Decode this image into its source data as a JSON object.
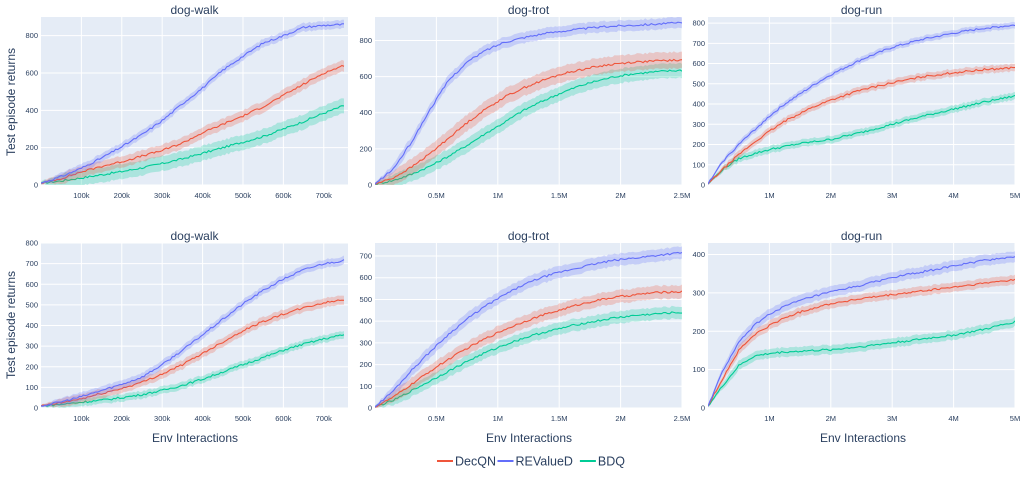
{
  "ylabel": "Test episode returns",
  "xlabel": "Env Interactions",
  "colors": {
    "DecQN": "#ef553b",
    "REValueD": "#636efa",
    "BDQ": "#00cc96",
    "plot_bg": "#e5ecf6",
    "grid": "#ffffff"
  },
  "legend": [
    {
      "name": "DecQN",
      "color": "#ef553b"
    },
    {
      "name": "REValueD",
      "color": "#636efa"
    },
    {
      "name": "BDQ",
      "color": "#00cc96"
    }
  ],
  "chart_data": [
    {
      "type": "line",
      "title": "dog-walk",
      "xlim": [
        0,
        760000
      ],
      "ylim": [
        0,
        900
      ],
      "xticks": [
        100000,
        200000,
        300000,
        400000,
        500000,
        600000,
        700000
      ],
      "xtick_labels": [
        "100k",
        "200k",
        "300k",
        "400k",
        "500k",
        "600k",
        "700k"
      ],
      "yticks": [
        0,
        200,
        400,
        600,
        800
      ],
      "ytick_labels": [
        "0",
        "200",
        "400",
        "600",
        "800"
      ],
      "series": [
        {
          "name": "DecQN",
          "x": [
            0,
            50000,
            100000,
            150000,
            200000,
            250000,
            300000,
            350000,
            400000,
            450000,
            500000,
            550000,
            600000,
            650000,
            700000,
            750000
          ],
          "y": [
            10,
            35,
            70,
            100,
            125,
            155,
            185,
            225,
            280,
            325,
            370,
            420,
            480,
            540,
            600,
            640
          ],
          "band": 30
        },
        {
          "name": "REValueD",
          "x": [
            0,
            50000,
            100000,
            150000,
            200000,
            250000,
            300000,
            350000,
            400000,
            450000,
            500000,
            550000,
            600000,
            650000,
            700000,
            750000
          ],
          "y": [
            10,
            45,
            90,
            145,
            205,
            270,
            345,
            435,
            520,
            615,
            690,
            760,
            800,
            845,
            855,
            860
          ],
          "band": 22
        },
        {
          "name": "BDQ",
          "x": [
            0,
            50000,
            100000,
            150000,
            200000,
            250000,
            300000,
            350000,
            400000,
            450000,
            500000,
            550000,
            600000,
            650000,
            700000,
            750000
          ],
          "y": [
            10,
            22,
            38,
            55,
            72,
            92,
            115,
            140,
            170,
            200,
            230,
            260,
            300,
            340,
            385,
            425
          ],
          "band": 40
        }
      ]
    },
    {
      "type": "line",
      "title": "dog-trot",
      "xlim": [
        0,
        2500000
      ],
      "ylim": [
        0,
        930
      ],
      "xticks": [
        500000,
        1000000,
        1500000,
        2000000,
        2500000
      ],
      "xtick_labels": [
        "0.5M",
        "1M",
        "1.5M",
        "2M",
        "2.5M"
      ],
      "yticks": [
        0,
        200,
        400,
        600,
        800
      ],
      "ytick_labels": [
        "0",
        "200",
        "400",
        "600",
        "800"
      ],
      "series": [
        {
          "name": "DecQN",
          "x": [
            0,
            150000,
            300000,
            450000,
            600000,
            750000,
            900000,
            1050000,
            1200000,
            1350000,
            1500000,
            1650000,
            1800000,
            1950000,
            2100000,
            2250000,
            2400000,
            2500000
          ],
          "y": [
            5,
            40,
            100,
            175,
            260,
            345,
            420,
            485,
            535,
            575,
            610,
            635,
            655,
            670,
            680,
            685,
            690,
            690
          ],
          "band": 45
        },
        {
          "name": "REValueD",
          "x": [
            0,
            150000,
            300000,
            450000,
            600000,
            750000,
            900000,
            1050000,
            1200000,
            1350000,
            1500000,
            1650000,
            1800000,
            1950000,
            2100000,
            2250000,
            2400000,
            2500000
          ],
          "y": [
            5,
            90,
            240,
            420,
            580,
            680,
            745,
            790,
            815,
            835,
            850,
            862,
            872,
            880,
            885,
            890,
            895,
            897
          ],
          "band": 30
        },
        {
          "name": "BDQ",
          "x": [
            0,
            150000,
            300000,
            450000,
            600000,
            750000,
            900000,
            1050000,
            1200000,
            1350000,
            1500000,
            1650000,
            1800000,
            1950000,
            2100000,
            2250000,
            2400000,
            2500000
          ],
          "y": [
            5,
            25,
            60,
            105,
            160,
            220,
            285,
            345,
            410,
            460,
            505,
            545,
            575,
            600,
            615,
            625,
            632,
            635
          ],
          "band": 40
        }
      ]
    },
    {
      "type": "line",
      "title": "dog-run",
      "xlim": [
        0,
        5000000
      ],
      "ylim": [
        0,
        830
      ],
      "xticks": [
        1000000,
        2000000,
        3000000,
        4000000,
        5000000
      ],
      "xtick_labels": [
        "1M",
        "2M",
        "3M",
        "4M",
        "5M"
      ],
      "yticks": [
        0,
        100,
        200,
        300,
        400,
        500,
        600,
        700,
        800
      ],
      "ytick_labels": [
        "0",
        "100",
        "200",
        "300",
        "400",
        "500",
        "600",
        "700",
        "800"
      ],
      "series": [
        {
          "name": "DecQN",
          "x": [
            0,
            250000,
            500000,
            750000,
            1000000,
            1250000,
            1500000,
            1750000,
            2000000,
            2500000,
            3000000,
            3500000,
            4000000,
            4500000,
            5000000
          ],
          "y": [
            5,
            80,
            150,
            210,
            265,
            315,
            355,
            390,
            420,
            470,
            505,
            535,
            555,
            570,
            580
          ],
          "band": 18
        },
        {
          "name": "REValueD",
          "x": [
            0,
            250000,
            500000,
            750000,
            1000000,
            1250000,
            1500000,
            1750000,
            2000000,
            2500000,
            3000000,
            3500000,
            4000000,
            4500000,
            5000000
          ],
          "y": [
            5,
            120,
            200,
            270,
            340,
            400,
            450,
            500,
            545,
            620,
            680,
            720,
            750,
            775,
            790
          ],
          "band": 16
        },
        {
          "name": "BDQ",
          "x": [
            0,
            250000,
            500000,
            750000,
            1000000,
            1250000,
            1500000,
            1750000,
            2000000,
            2500000,
            3000000,
            3500000,
            4000000,
            4500000,
            5000000
          ],
          "y": [
            5,
            80,
            130,
            155,
            175,
            190,
            205,
            215,
            225,
            260,
            300,
            340,
            375,
            410,
            440
          ],
          "band": 18
        }
      ]
    },
    {
      "type": "line",
      "title": "dog-walk",
      "xlim": [
        0,
        760000
      ],
      "ylim": [
        0,
        800
      ],
      "xticks": [
        100000,
        200000,
        300000,
        400000,
        500000,
        600000,
        700000
      ],
      "xtick_labels": [
        "100k",
        "200k",
        "300k",
        "400k",
        "500k",
        "600k",
        "700k"
      ],
      "yticks": [
        0,
        100,
        200,
        300,
        400,
        500,
        600,
        700,
        800
      ],
      "ytick_labels": [
        "0",
        "100",
        "200",
        "300",
        "400",
        "500",
        "600",
        "700",
        "800"
      ],
      "series": [
        {
          "name": "DecQN",
          "x": [
            0,
            50000,
            100000,
            150000,
            200000,
            250000,
            300000,
            350000,
            400000,
            450000,
            500000,
            550000,
            600000,
            650000,
            700000,
            750000
          ],
          "y": [
            10,
            25,
            45,
            70,
            95,
            125,
            165,
            210,
            265,
            320,
            375,
            420,
            455,
            485,
            510,
            525
          ],
          "band": 22
        },
        {
          "name": "REValueD",
          "x": [
            0,
            50000,
            100000,
            150000,
            200000,
            250000,
            300000,
            350000,
            400000,
            450000,
            500000,
            550000,
            600000,
            650000,
            700000,
            750000
          ],
          "y": [
            10,
            30,
            55,
            85,
            115,
            150,
            210,
            280,
            355,
            430,
            505,
            570,
            625,
            670,
            700,
            715
          ],
          "band": 20
        },
        {
          "name": "BDQ",
          "x": [
            0,
            50000,
            100000,
            150000,
            200000,
            250000,
            300000,
            350000,
            400000,
            450000,
            500000,
            550000,
            600000,
            650000,
            700000,
            750000
          ],
          "y": [
            10,
            18,
            28,
            38,
            50,
            65,
            85,
            110,
            140,
            175,
            210,
            245,
            280,
            310,
            335,
            355
          ],
          "band": 18
        }
      ]
    },
    {
      "type": "line",
      "title": "dog-trot",
      "xlim": [
        0,
        2500000
      ],
      "ylim": [
        0,
        760
      ],
      "xticks": [
        500000,
        1000000,
        1500000,
        2000000,
        2500000
      ],
      "xtick_labels": [
        "0.5M",
        "1M",
        "1.5M",
        "2M",
        "2.5M"
      ],
      "yticks": [
        0,
        100,
        200,
        300,
        400,
        500,
        600,
        700
      ],
      "ytick_labels": [
        "0",
        "100",
        "200",
        "300",
        "400",
        "500",
        "600",
        "700"
      ],
      "series": [
        {
          "name": "DecQN",
          "x": [
            0,
            150000,
            300000,
            450000,
            600000,
            750000,
            900000,
            1050000,
            1200000,
            1350000,
            1500000,
            1650000,
            1800000,
            1950000,
            2100000,
            2250000,
            2400000,
            2500000
          ],
          "y": [
            5,
            50,
            110,
            170,
            225,
            275,
            320,
            360,
            395,
            425,
            450,
            475,
            495,
            510,
            520,
            530,
            535,
            535
          ],
          "band": 30
        },
        {
          "name": "REValueD",
          "x": [
            0,
            150000,
            300000,
            450000,
            600000,
            750000,
            900000,
            1050000,
            1200000,
            1350000,
            1500000,
            1650000,
            1800000,
            1950000,
            2100000,
            2250000,
            2400000,
            2500000
          ],
          "y": [
            5,
            80,
            175,
            260,
            340,
            410,
            470,
            520,
            565,
            600,
            625,
            645,
            665,
            680,
            690,
            700,
            710,
            715
          ],
          "band": 28
        },
        {
          "name": "BDQ",
          "x": [
            0,
            150000,
            300000,
            450000,
            600000,
            750000,
            900000,
            1050000,
            1200000,
            1350000,
            1500000,
            1650000,
            1800000,
            1950000,
            2100000,
            2250000,
            2400000,
            2500000
          ],
          "y": [
            5,
            35,
            80,
            125,
            170,
            215,
            255,
            290,
            320,
            345,
            365,
            385,
            400,
            415,
            425,
            432,
            438,
            440
          ],
          "band": 28
        }
      ]
    },
    {
      "type": "line",
      "title": "dog-run",
      "xlim": [
        0,
        5000000
      ],
      "ylim": [
        0,
        430
      ],
      "xticks": [
        1000000,
        2000000,
        3000000,
        4000000,
        5000000
      ],
      "xtick_labels": [
        "1M",
        "2M",
        "3M",
        "4M",
        "5M"
      ],
      "yticks": [
        0,
        100,
        200,
        300,
        400
      ],
      "ytick_labels": [
        "0",
        "100",
        "200",
        "300",
        "400"
      ],
      "series": [
        {
          "name": "DecQN",
          "x": [
            0,
            250000,
            500000,
            750000,
            1000000,
            1250000,
            1500000,
            1750000,
            2000000,
            2500000,
            3000000,
            3500000,
            4000000,
            4500000,
            5000000
          ],
          "y": [
            5,
            80,
            150,
            190,
            215,
            235,
            250,
            262,
            272,
            285,
            295,
            305,
            315,
            325,
            335
          ],
          "band": 12
        },
        {
          "name": "REValueD",
          "x": [
            0,
            250000,
            500000,
            750000,
            1000000,
            1250000,
            1500000,
            1750000,
            2000000,
            2500000,
            3000000,
            3500000,
            4000000,
            4500000,
            5000000
          ],
          "y": [
            5,
            100,
            170,
            215,
            245,
            265,
            280,
            292,
            302,
            320,
            340,
            355,
            370,
            385,
            395
          ],
          "band": 14
        },
        {
          "name": "BDQ",
          "x": [
            0,
            250000,
            500000,
            750000,
            1000000,
            1250000,
            1500000,
            1750000,
            2000000,
            2500000,
            3000000,
            3500000,
            4000000,
            4500000,
            5000000
          ],
          "y": [
            5,
            60,
            110,
            135,
            142,
            146,
            148,
            150,
            152,
            160,
            170,
            180,
            190,
            205,
            225
          ],
          "band": 12
        }
      ]
    }
  ]
}
